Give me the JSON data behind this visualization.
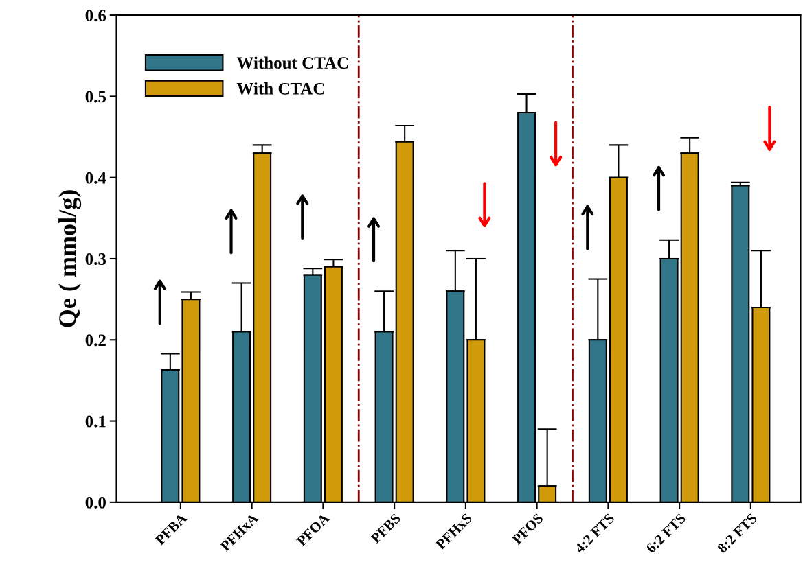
{
  "chart_data": {
    "type": "bar",
    "ylabel": "Qe ( mmol/g)",
    "categories": [
      "PFBA",
      "PFHxA",
      "PFOA",
      "PFBS",
      "PFHxS",
      "PFOS",
      "4:2 FTS",
      "6:2 FTS",
      "8:2 FTS"
    ],
    "series": [
      {
        "name": "Without CTAC",
        "color": "#317589",
        "values": [
          0.163,
          0.21,
          0.28,
          0.21,
          0.26,
          0.48,
          0.2,
          0.3,
          0.39
        ],
        "errors": [
          [
            0.163,
            0.183
          ],
          [
            0.21,
            0.27
          ],
          [
            0.28,
            0.288
          ],
          [
            0.21,
            0.26
          ],
          [
            0.26,
            0.31
          ],
          [
            0.48,
            0.503
          ],
          [
            0.2,
            0.275
          ],
          [
            0.3,
            0.323
          ],
          [
            0.39,
            0.394
          ]
        ]
      },
      {
        "name": "With CTAC",
        "color": "#d09a0b",
        "values": [
          0.25,
          0.43,
          0.29,
          0.444,
          0.2,
          0.02,
          0.4,
          0.43,
          0.24
        ],
        "errors": [
          [
            0.25,
            0.259
          ],
          [
            0.43,
            0.44
          ],
          [
            0.29,
            0.299
          ],
          [
            0.444,
            0.464
          ],
          [
            0.2,
            0.3
          ],
          [
            0.02,
            0.09
          ],
          [
            0.4,
            0.44
          ],
          [
            0.43,
            0.449
          ],
          [
            0.24,
            0.31
          ]
        ]
      }
    ],
    "ylim": [
      0,
      0.6
    ],
    "yticks": [
      {
        "value": 0,
        "label": "0.0"
      },
      {
        "value": 0.1,
        "label": "0.1"
      },
      {
        "value": 0.2,
        "label": "0.2"
      },
      {
        "value": 0.3,
        "label": "0.3"
      },
      {
        "value": 0.4,
        "label": "0.4"
      },
      {
        "value": 0.5,
        "label": "0.5"
      },
      {
        "value": 0.6,
        "label": "0.6"
      }
    ],
    "legend": "top left",
    "grid": false
  }
}
